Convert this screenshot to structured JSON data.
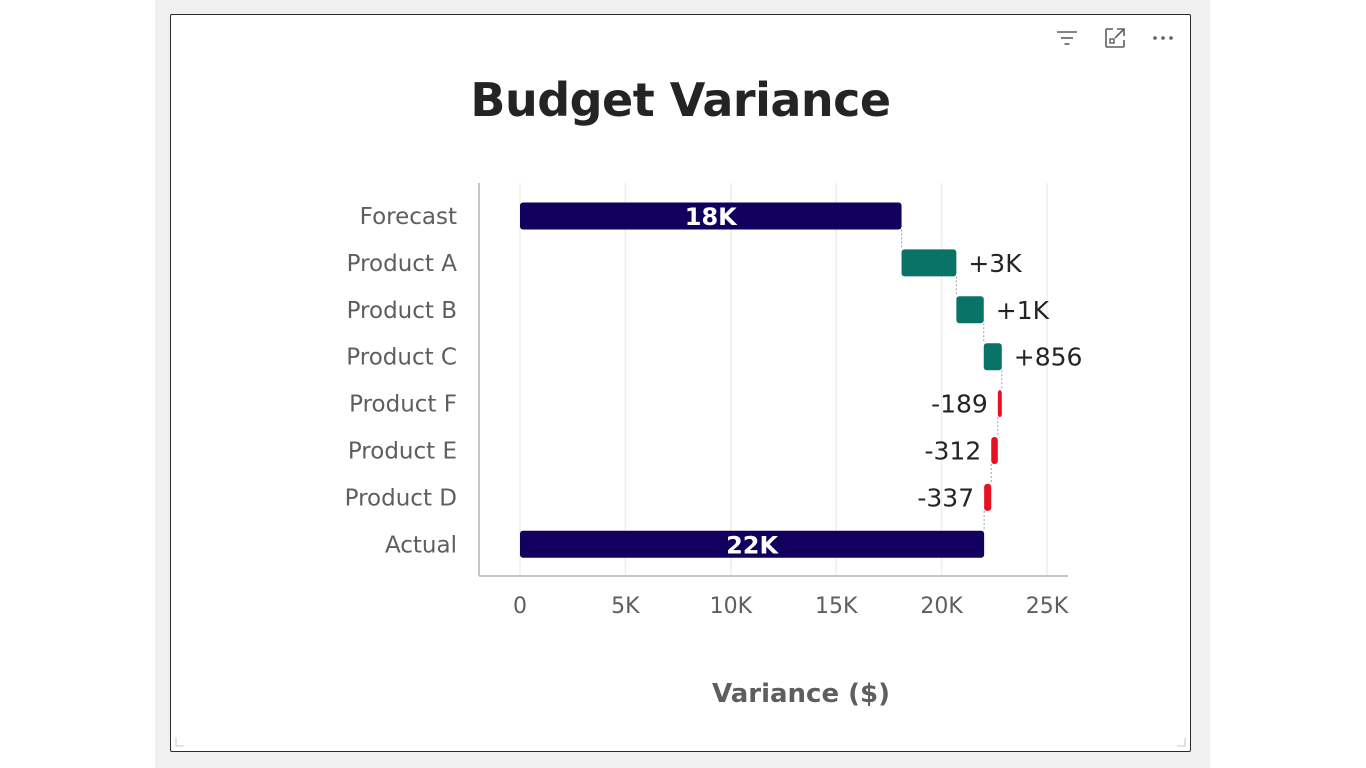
{
  "visual": {
    "header_icons": [
      {
        "name": "filter-icon",
        "label": "Filter"
      },
      {
        "name": "focus-mode-icon",
        "label": "Focus mode"
      },
      {
        "name": "more-options-icon",
        "label": "More options"
      }
    ]
  },
  "chart_data": {
    "type": "waterfall",
    "orientation": "horizontal",
    "title": "Budget Variance",
    "xlabel": "Variance ($)",
    "ylabel": "",
    "xlim": [
      0,
      25000
    ],
    "x_ticks": [
      0,
      5000,
      10000,
      15000,
      20000,
      25000
    ],
    "x_tick_labels": [
      "0",
      "5K",
      "10K",
      "15K",
      "20K",
      "25K"
    ],
    "grid": "vertical",
    "categories": [
      "Forecast",
      "Product A",
      "Product B",
      "Product C",
      "Product F",
      "Product E",
      "Product D",
      "Actual"
    ],
    "bars": [
      {
        "category": "Forecast",
        "kind": "total",
        "start": 0,
        "end": 18100,
        "label": "18K"
      },
      {
        "category": "Product A",
        "kind": "increase",
        "start": 18100,
        "end": 20700,
        "label": "+3K"
      },
      {
        "category": "Product B",
        "kind": "increase",
        "start": 20700,
        "end": 22000,
        "label": "+1K"
      },
      {
        "category": "Product C",
        "kind": "increase",
        "start": 22000,
        "end": 22856,
        "label": "+856"
      },
      {
        "category": "Product F",
        "kind": "decrease",
        "start": 22856,
        "end": 22667,
        "label": "-189"
      },
      {
        "category": "Product E",
        "kind": "decrease",
        "start": 22667,
        "end": 22355,
        "label": "-312"
      },
      {
        "category": "Product D",
        "kind": "decrease",
        "start": 22355,
        "end": 22018,
        "label": "-337"
      },
      {
        "category": "Actual",
        "kind": "total",
        "start": 0,
        "end": 22018,
        "label": "22K"
      }
    ],
    "colors": {
      "total": "#12005e",
      "increase": "#0a7368",
      "decrease": "#e81123",
      "grid": "#efeee6",
      "axis": "#c8c6c4",
      "connector": "#9e9e9e",
      "text": "#605e5c",
      "data_label": "#252423",
      "total_label": "#ffffff"
    }
  }
}
